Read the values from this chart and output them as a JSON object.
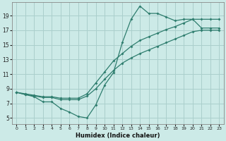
{
  "xlabel": "Humidex (Indice chaleur)",
  "bg_color": "#cceae7",
  "grid_color": "#aacfcc",
  "line_color": "#2e7d6e",
  "x_ticks": [
    0,
    1,
    2,
    3,
    4,
    5,
    6,
    7,
    8,
    9,
    10,
    11,
    12,
    13,
    14,
    15,
    16,
    17,
    18,
    19,
    20,
    21,
    22,
    23
  ],
  "y_ticks": [
    5,
    7,
    9,
    11,
    13,
    15,
    17,
    19
  ],
  "xlim": [
    -0.5,
    23.5
  ],
  "ylim": [
    4.2,
    20.8
  ],
  "line_jagged": [
    8.5,
    8.2,
    7.9,
    7.2,
    7.2,
    6.3,
    5.8,
    5.2,
    5.0,
    6.8,
    9.5,
    11.2,
    15.3,
    18.5,
    20.3,
    19.3,
    19.3,
    18.8,
    18.3,
    18.5,
    18.5,
    17.3,
    17.3,
    17.3
  ],
  "line_upper": [
    8.5,
    8.3,
    8.1,
    7.9,
    7.9,
    7.7,
    7.7,
    7.7,
    8.3,
    9.8,
    11.3,
    12.8,
    13.8,
    14.8,
    15.6,
    16.1,
    16.6,
    17.1,
    17.5,
    18.0,
    18.5,
    18.5,
    18.5,
    18.5
  ],
  "line_lower": [
    8.5,
    8.2,
    8.0,
    7.8,
    7.8,
    7.5,
    7.5,
    7.5,
    8.0,
    9.0,
    10.3,
    11.5,
    12.5,
    13.2,
    13.8,
    14.3,
    14.8,
    15.3,
    15.8,
    16.3,
    16.8,
    17.0,
    17.0,
    17.0
  ]
}
